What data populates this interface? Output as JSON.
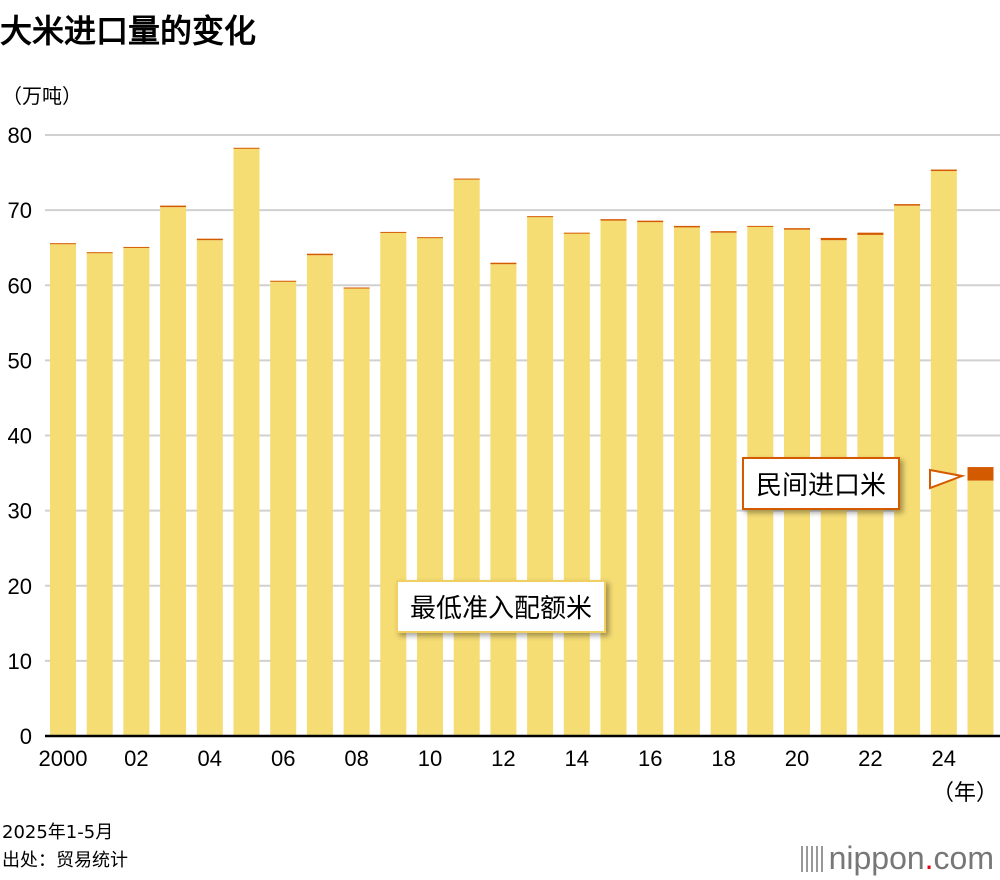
{
  "chart_data": {
    "type": "bar",
    "stacked": true,
    "title": "大米进口量的变化",
    "ylabel": "（万吨）",
    "xlabel": "（年）",
    "ylim": [
      0,
      80
    ],
    "yticks": [
      0,
      10,
      20,
      30,
      40,
      50,
      60,
      70,
      80
    ],
    "grid": true,
    "categories": [
      "2000",
      "2001",
      "2002",
      "2003",
      "2004",
      "2005",
      "2006",
      "2007",
      "2008",
      "2009",
      "2010",
      "2011",
      "2012",
      "2013",
      "2014",
      "2015",
      "2016",
      "2017",
      "2018",
      "2019",
      "2020",
      "2021",
      "2022",
      "2023",
      "2024",
      "2025"
    ],
    "xtick_labels": [
      "2000",
      "",
      "02",
      "",
      "04",
      "",
      "06",
      "",
      "08",
      "",
      "10",
      "",
      "12",
      "",
      "14",
      "",
      "16",
      "",
      "18",
      "",
      "20",
      "",
      "22",
      "",
      "24",
      ""
    ],
    "series": [
      {
        "name": "最低准入配额米",
        "color": "#f5dc73",
        "values": [
          65.5,
          64.3,
          65.0,
          70.4,
          66.0,
          78.2,
          60.5,
          64.0,
          59.6,
          67.0,
          66.3,
          74.1,
          62.8,
          69.1,
          66.9,
          68.6,
          68.4,
          67.7,
          67.0,
          67.8,
          67.4,
          66.0,
          66.7,
          70.6,
          75.2,
          34.0
        ]
      },
      {
        "name": "民间进口米",
        "color": "#d45a00",
        "values": [
          0.1,
          0.1,
          0.1,
          0.2,
          0.2,
          0.1,
          0.1,
          0.2,
          0.1,
          0.1,
          0.1,
          0.1,
          0.2,
          0.1,
          0.1,
          0.2,
          0.2,
          0.2,
          0.2,
          0.1,
          0.2,
          0.3,
          0.3,
          0.2,
          0.2,
          1.8
        ]
      }
    ]
  },
  "notes": {
    "period": "2025年1-5月",
    "source": "出处：贸易统计"
  },
  "logo": {
    "name": "nippon",
    "dot": ".",
    "suffix": "com"
  }
}
